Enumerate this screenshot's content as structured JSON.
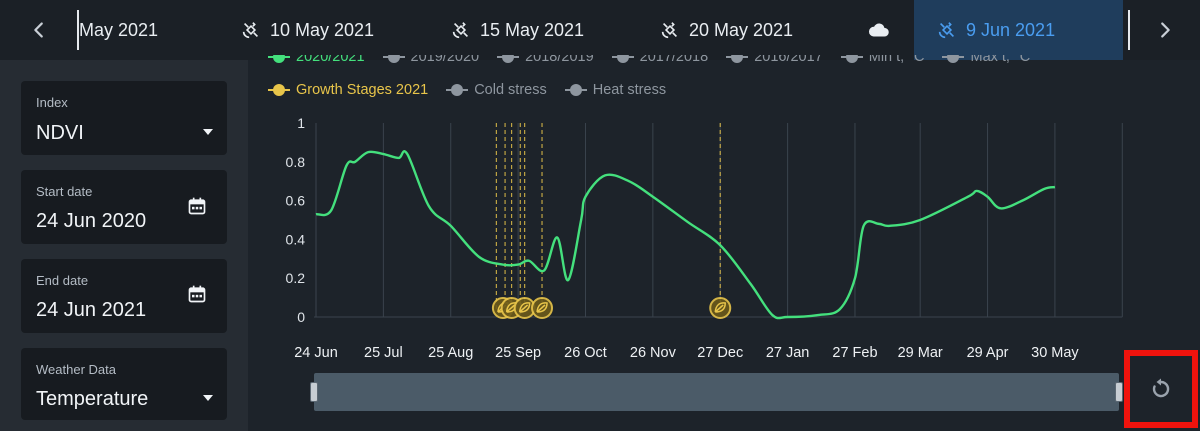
{
  "topbar": {
    "dates": [
      {
        "label": "May 2021",
        "icon": "none"
      },
      {
        "label": "10 May 2021",
        "icon": "satellite-icon"
      },
      {
        "label": "15 May 2021",
        "icon": "satellite-icon"
      },
      {
        "label": "20 May 2021",
        "icon": "satellite-icon"
      },
      {
        "label": "",
        "icon": "cloud-icon"
      },
      {
        "label": "9 Jun 2021",
        "icon": "satellite-icon",
        "active": true
      }
    ]
  },
  "sidebar": {
    "index": {
      "label": "Index",
      "value": "NDVI"
    },
    "start_date": {
      "label": "Start date",
      "value": "24 Jun 2020"
    },
    "end_date": {
      "label": "End date",
      "value": "24 Jun 2021"
    },
    "weather": {
      "label": "Weather Data",
      "value": "Temperature"
    }
  },
  "legend": {
    "row1": [
      "2020/2021",
      "2019/2020",
      "2018/2019",
      "2017/2018",
      "2016/2017",
      "Min t, °C",
      "Max t, °C"
    ],
    "row2": [
      "Growth Stages 2021",
      "Cold stress",
      "Heat stress"
    ]
  },
  "colors": {
    "ndvi_line": "#44e07d",
    "growth_stage": "#e8c54a",
    "active_tab_bg": "#1f3d5c",
    "active_tab_text": "#4a9df0",
    "highlight_box": "#f0130d"
  },
  "chart_data": {
    "type": "line",
    "ylim": [
      0,
      1
    ],
    "yticks": [
      "1",
      "0.8",
      "0.6",
      "0.4",
      "0.2",
      "0"
    ],
    "xticks": [
      "24 Jun",
      "25 Jul",
      "25 Aug",
      "25 Sep",
      "26 Oct",
      "26 Nov",
      "27 Dec",
      "27 Jan",
      "27 Feb",
      "29 Mar",
      "29 Apr",
      "30 May"
    ],
    "series": [
      {
        "name": "2020/2021",
        "points": [
          [
            "24 Jun",
            0.53
          ],
          [
            "1 Jul",
            0.55
          ],
          [
            "8 Jul",
            0.78
          ],
          [
            "12 Jul",
            0.8
          ],
          [
            "18 Jul",
            0.85
          ],
          [
            "25 Jul",
            0.84
          ],
          [
            "1 Aug",
            0.82
          ],
          [
            "5 Aug",
            0.84
          ],
          [
            "15 Aug",
            0.57
          ],
          [
            "25 Aug",
            0.47
          ],
          [
            "7 Sep",
            0.31
          ],
          [
            "18 Sep",
            0.27
          ],
          [
            "25 Sep",
            0.27
          ],
          [
            "30 Sep",
            0.29
          ],
          [
            "7 Oct",
            0.24
          ],
          [
            "13 Oct",
            0.41
          ],
          [
            "18 Oct",
            0.19
          ],
          [
            "24 Oct",
            0.5
          ],
          [
            "26 Oct",
            0.62
          ],
          [
            "4 Nov",
            0.73
          ],
          [
            "15 Nov",
            0.7
          ],
          [
            "26 Nov",
            0.62
          ],
          [
            "12 Dec",
            0.49
          ],
          [
            "27 Dec",
            0.37
          ],
          [
            "10 Jan",
            0.17
          ],
          [
            "20 Jan",
            0.01
          ],
          [
            "27 Jan",
            0.0
          ],
          [
            "10 Feb",
            0.01
          ],
          [
            "20 Feb",
            0.04
          ],
          [
            "27 Feb",
            0.2
          ],
          [
            "3 Mar",
            0.47
          ],
          [
            "10 Mar",
            0.48
          ],
          [
            "15 Mar",
            0.47
          ],
          [
            "29 Mar",
            0.5
          ],
          [
            "20 Apr",
            0.62
          ],
          [
            "24 Apr",
            0.65
          ],
          [
            "29 Apr",
            0.62
          ],
          [
            "5 May",
            0.56
          ],
          [
            "15 May",
            0.6
          ],
          [
            "25 May",
            0.66
          ],
          [
            "30 May",
            0.67
          ]
        ]
      }
    ],
    "growth_stage_dates": [
      "15 Sep",
      "19 Sep",
      "22 Sep",
      "26 Sep",
      "28 Sep",
      "6 Oct",
      "27 Dec"
    ],
    "growth_stage_markers": [
      "18 Sep",
      "22 Sep",
      "28 Sep",
      "6 Oct",
      "27 Dec"
    ]
  }
}
